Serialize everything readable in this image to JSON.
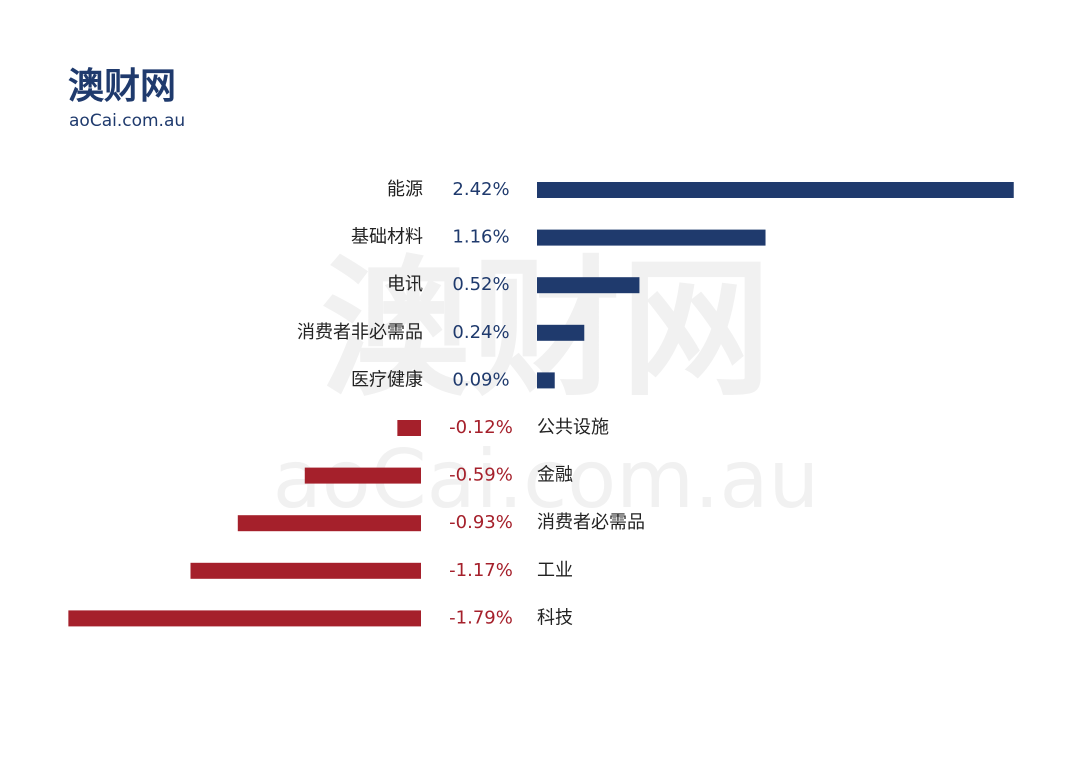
{
  "logo": {
    "name": "澳财网",
    "site": "aoCai.com.au"
  },
  "chart_data": {
    "type": "diverging-bar",
    "categories": [
      "能源",
      "基础材料",
      "电讯",
      "消费者非必需品",
      "医疗健康",
      "公共设施",
      "金融",
      "消费者必需品",
      "工业",
      "科技"
    ],
    "values": [
      2.42,
      1.16,
      0.52,
      0.24,
      0.09,
      -0.12,
      -0.59,
      -0.93,
      -1.17,
      -1.79
    ],
    "value_labels": [
      "2.42%",
      "1.16%",
      "0.52%",
      "0.24%",
      "0.09%",
      "-0.12%",
      "-0.59%",
      "-0.93%",
      "-1.17%",
      "-1.79%"
    ],
    "color_positive": "#1f3a6d",
    "color_negative": "#a5202b"
  }
}
